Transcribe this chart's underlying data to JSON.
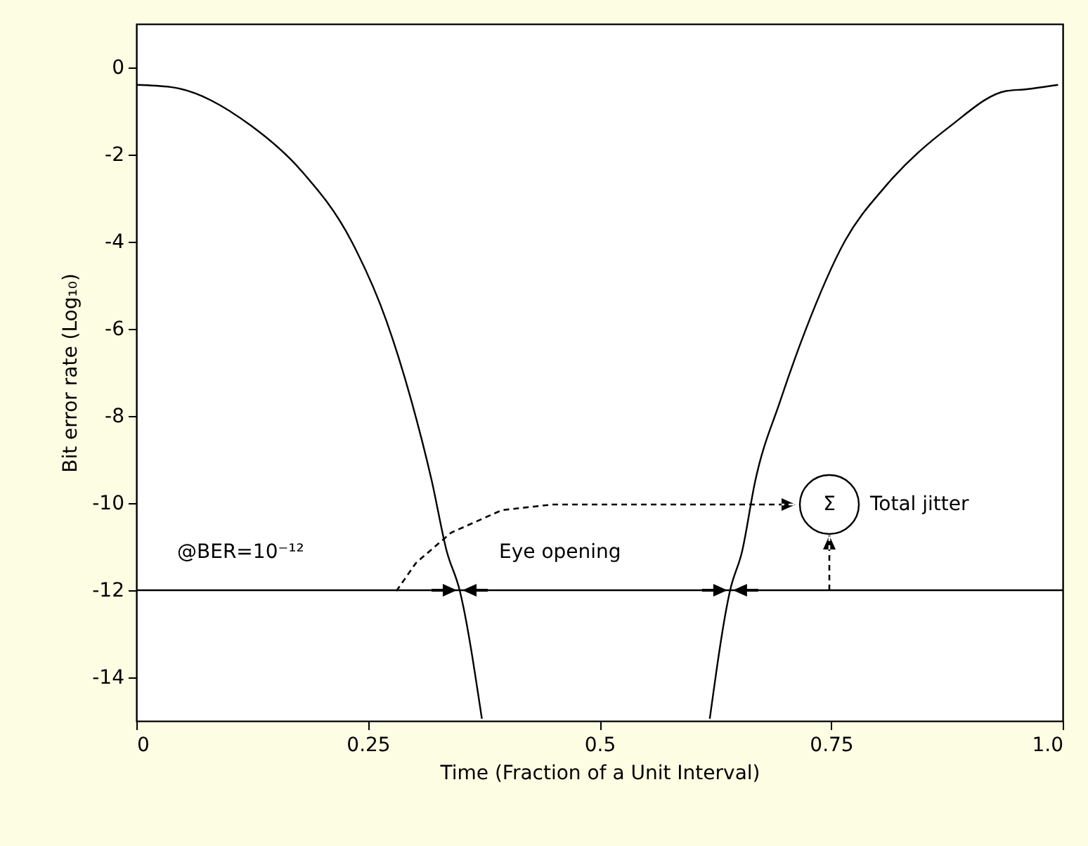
{
  "chart_data": {
    "type": "line",
    "xlabel": "Time (Fraction of a Unit Interval)",
    "ylabel": "Bit error rate (Log₁₀)",
    "xlim": [
      0,
      1
    ],
    "ylim": [
      -15,
      1
    ],
    "xticks": [
      0,
      0.25,
      0.5,
      0.75,
      {
        "value": 1,
        "label": "1.0"
      }
    ],
    "yticks": [
      -14,
      -12,
      -10,
      -8,
      -6,
      -4,
      -2,
      0
    ],
    "series": [
      {
        "color": "#000000",
        "x": [
          0,
          0.037,
          0.124,
          0.178,
          0.232,
          0.27,
          0.297,
          0.319,
          0.335,
          0.349,
          0.373
        ],
        "values": [
          -0.4,
          -0.45,
          -1.34,
          -2.37,
          -3.98,
          -5.82,
          -7.66,
          -9.5,
          -11.1,
          -12,
          -14.95
        ]
      },
      {
        "color": "#000000",
        "x": [
          0.619,
          0.641,
          0.654,
          0.668,
          0.695,
          0.722,
          0.765,
          0.809,
          0.879,
          0.939,
          0.961,
          0.995
        ],
        "values": [
          -14.95,
          -12,
          -11.1,
          -9.5,
          -7.66,
          -6.05,
          -3.98,
          -2.72,
          -1.34,
          -0.54,
          -0.5,
          -0.4
        ]
      }
    ],
    "ref_lines": [
      {
        "axis": "y",
        "value": -12
      }
    ],
    "annotations": [
      "@BER=10⁻¹²",
      "Eye opening",
      "Σ",
      "Total jitter"
    ]
  }
}
